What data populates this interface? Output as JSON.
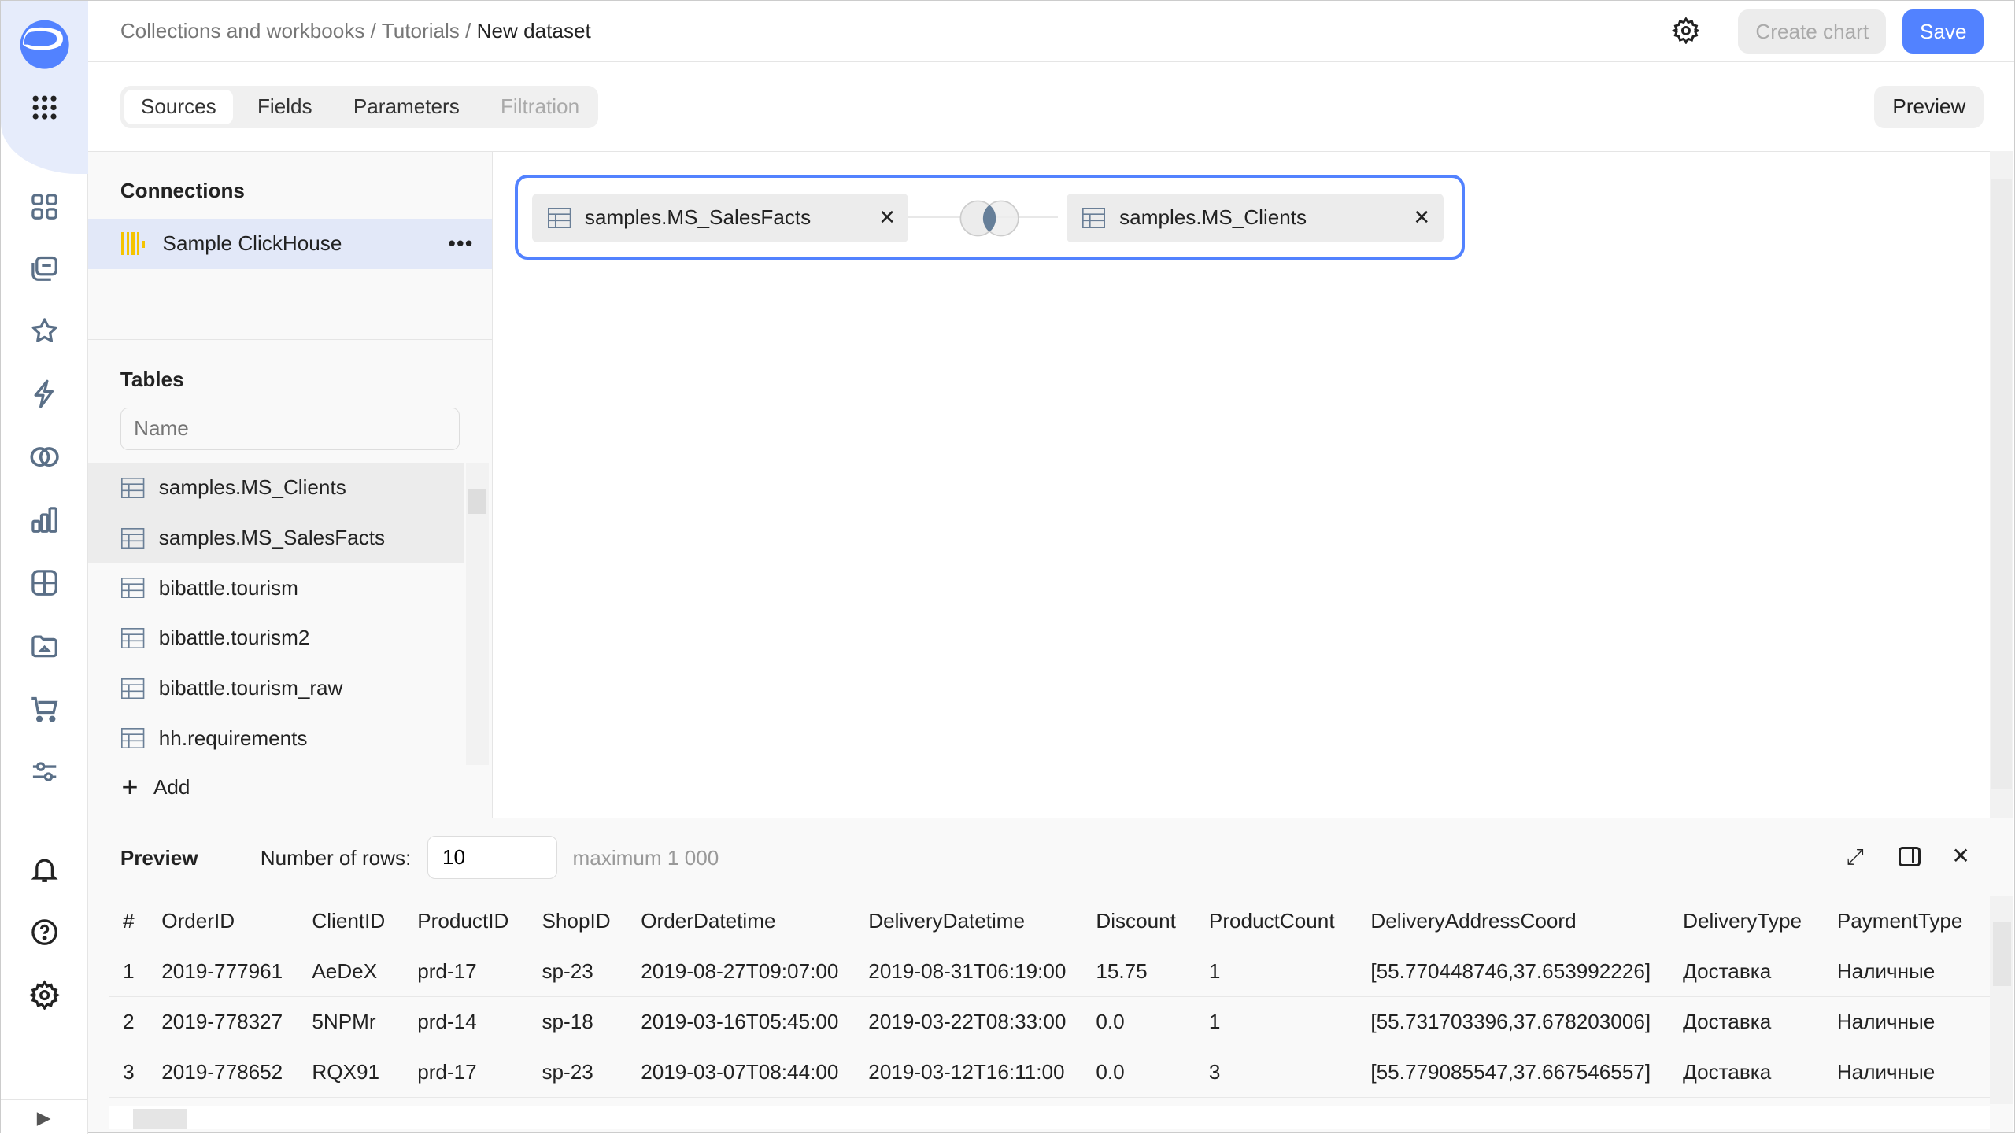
{
  "breadcrumb": [
    "Collections and workbooks",
    "Tutorials",
    "New dataset"
  ],
  "header": {
    "create_chart": "Create chart",
    "save": "Save",
    "settings_icon": "gear-icon"
  },
  "tabs": [
    {
      "label": "Sources",
      "state": "active"
    },
    {
      "label": "Fields",
      "state": "normal"
    },
    {
      "label": "Parameters",
      "state": "normal"
    },
    {
      "label": "Filtration",
      "state": "disabled"
    }
  ],
  "preview_button": "Preview",
  "connections": {
    "title": "Connections",
    "items": [
      {
        "label": "Sample ClickHouse",
        "selected": true
      }
    ]
  },
  "tables": {
    "title": "Tables",
    "search_placeholder": "Name",
    "items": [
      {
        "label": "samples.MS_Clients",
        "selected": true
      },
      {
        "label": "samples.MS_SalesFacts",
        "selected": true
      },
      {
        "label": "bibattle.tourism",
        "selected": false
      },
      {
        "label": "bibattle.tourism2",
        "selected": false
      },
      {
        "label": "bibattle.tourism_raw",
        "selected": false
      },
      {
        "label": "hh.requirements",
        "selected": false
      }
    ],
    "add_label": "Add"
  },
  "join": {
    "left": "samples.MS_SalesFacts",
    "right": "samples.MS_Clients",
    "type_icon": "inner-join-icon"
  },
  "preview": {
    "title": "Preview",
    "rows_label": "Number of rows:",
    "rows_value": "10",
    "max_label": "maximum 1 000",
    "columns": [
      "#",
      "OrderID",
      "ClientID",
      "ProductID",
      "ShopID",
      "OrderDatetime",
      "DeliveryDatetime",
      "Discount",
      "ProductCount",
      "DeliveryAddressCoord",
      "DeliveryType",
      "PaymentType"
    ],
    "rows": [
      [
        "1",
        "2019-777961",
        "AeDeX",
        "prd-17",
        "sp-23",
        "2019-08-27T09:07:00",
        "2019-08-31T06:19:00",
        "15.75",
        "1",
        "[55.770448746,37.653992226]",
        "Доставка",
        "Наличные"
      ],
      [
        "2",
        "2019-778327",
        "5NPMr",
        "prd-14",
        "sp-18",
        "2019-03-16T05:45:00",
        "2019-03-22T08:33:00",
        "0.0",
        "1",
        "[55.731703396,37.678203006]",
        "Доставка",
        "Наличные"
      ],
      [
        "3",
        "2019-778652",
        "RQX91",
        "prd-17",
        "sp-23",
        "2019-03-07T08:44:00",
        "2019-03-12T16:11:00",
        "0.0",
        "3",
        "[55.779085547,37.667546557]",
        "Доставка",
        "Наличные"
      ]
    ]
  },
  "colors": {
    "accent": "#5282ff",
    "selected_connection": "#e2e8f8",
    "rail_top": "#e6ecfb"
  }
}
